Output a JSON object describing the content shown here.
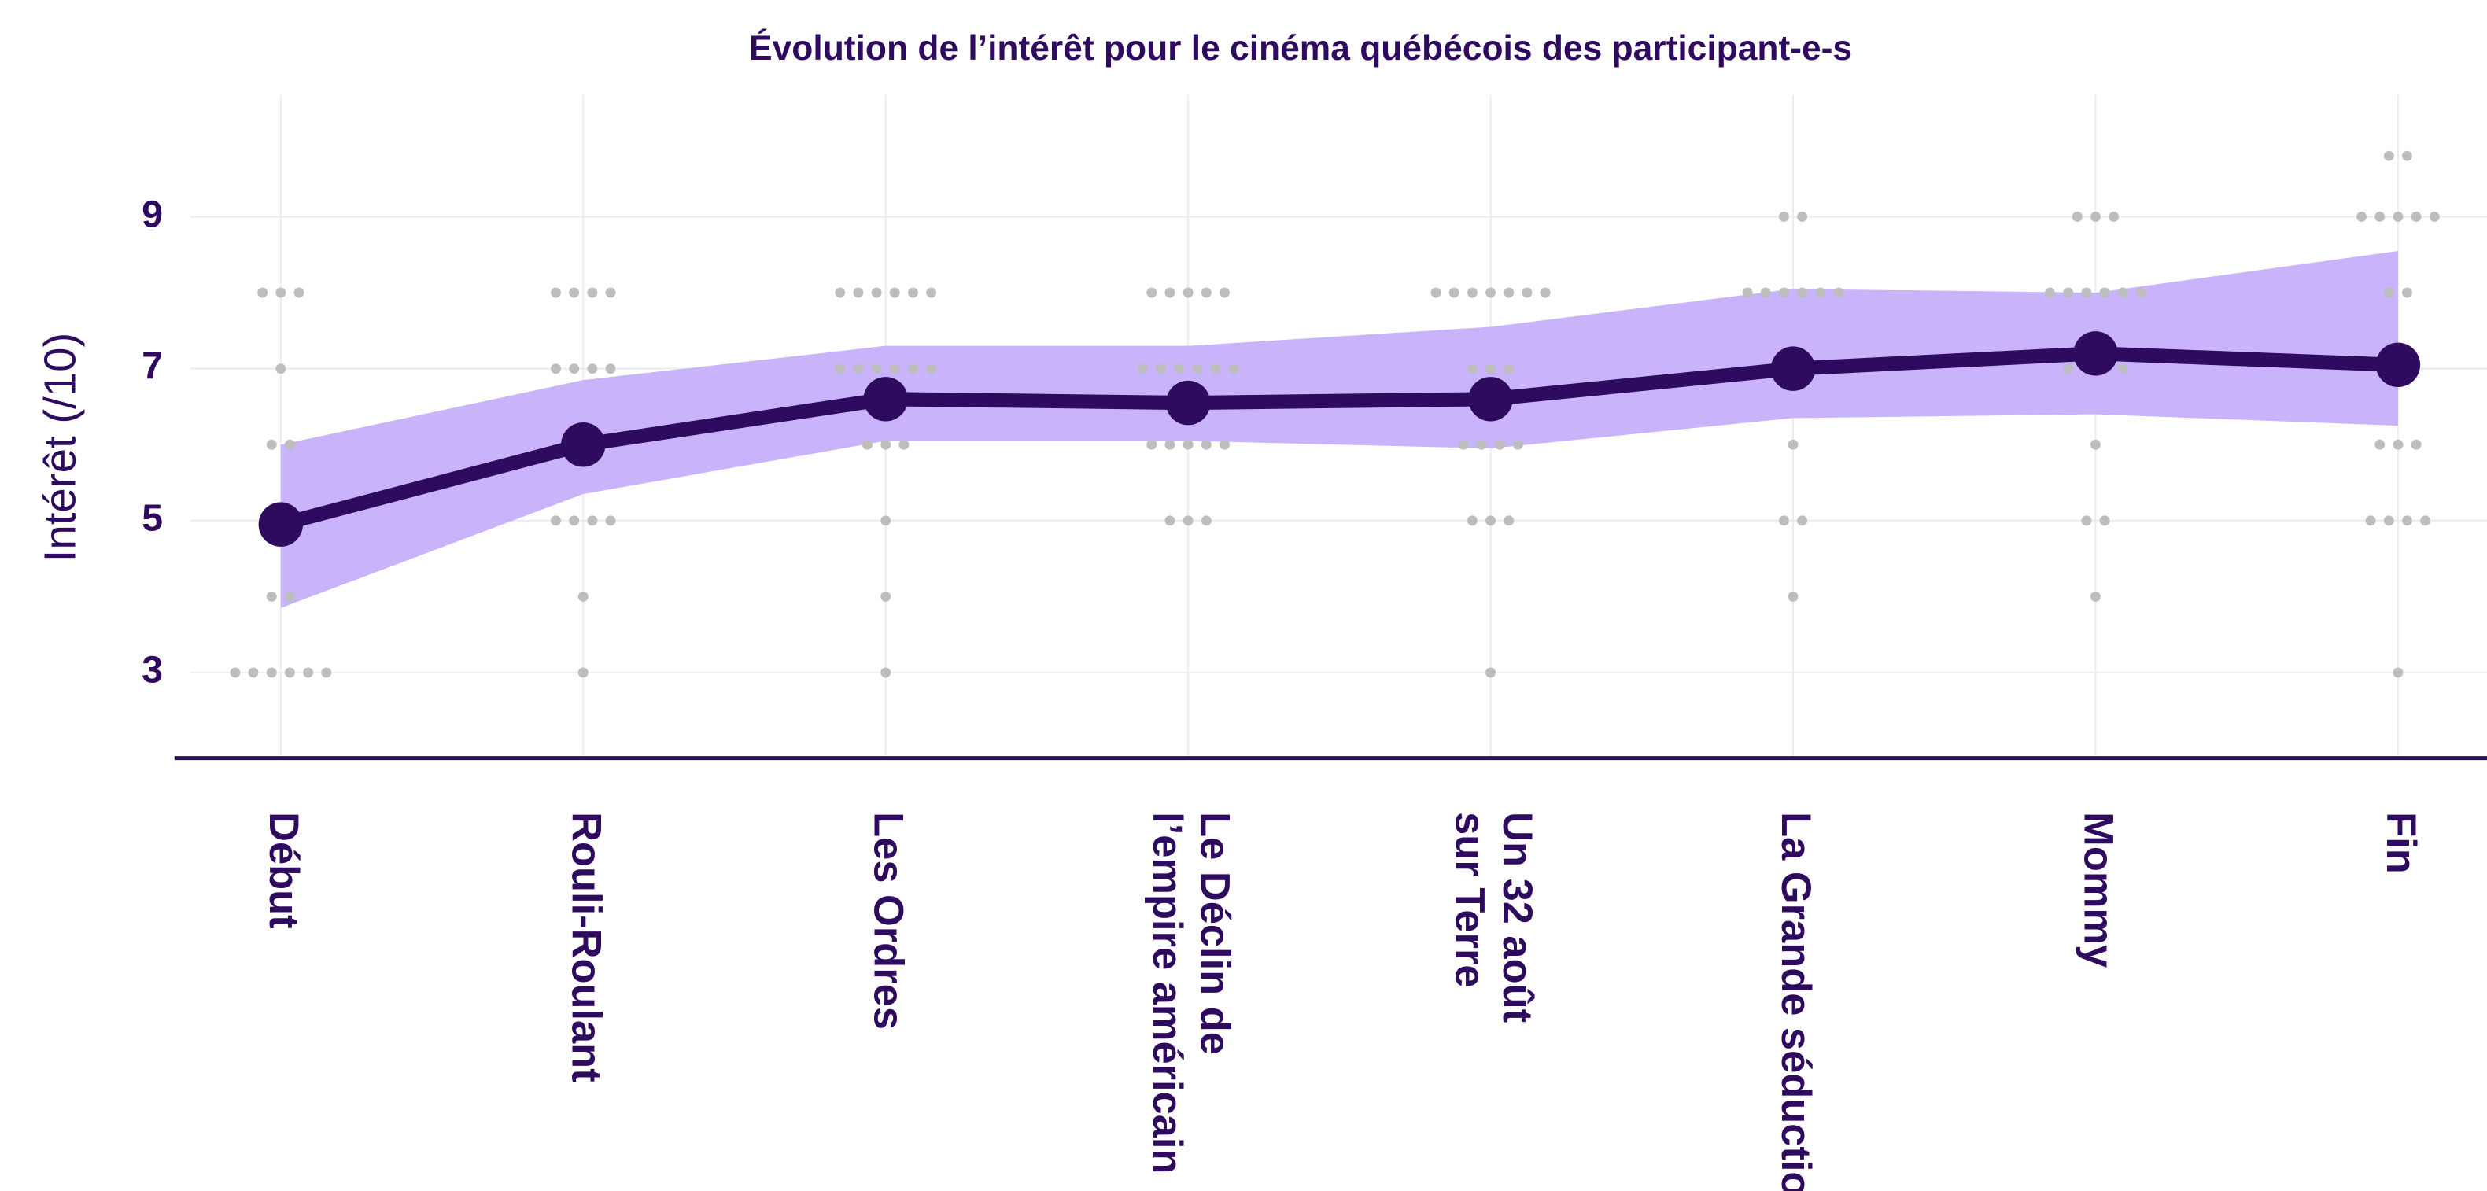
{
  "chart_data": {
    "type": "line",
    "title": "Évolution de l’intérêt pour le cinéma québécois des participant-e-s",
    "y_label": "Intérêt (/10)",
    "categories": [
      "Début",
      "Rouli-Roulant",
      "Les Ordres",
      [
        "Le Déclin de",
        "l’empire américain"
      ],
      [
        "Un 32 août",
        "sur Terre"
      ],
      "La Grande séduction",
      "Mommy",
      "Fin"
    ],
    "values": [
      4.95,
      6.0,
      6.6,
      6.55,
      6.6,
      7.0,
      7.2,
      7.05
    ],
    "band_lower": [
      3.85,
      5.35,
      6.05,
      6.05,
      5.95,
      6.35,
      6.4,
      6.25
    ],
    "band_upper": [
      6.0,
      6.85,
      7.3,
      7.3,
      7.55,
      8.05,
      8.0,
      8.55
    ],
    "responses": [
      [
        8,
        8,
        8,
        7,
        6,
        6,
        5,
        4,
        4,
        3,
        3,
        3,
        3,
        3,
        3
      ],
      [
        8,
        8,
        8,
        8,
        7,
        7,
        7,
        7,
        6,
        6,
        5,
        5,
        5,
        5,
        4,
        3
      ],
      [
        8,
        8,
        8,
        8,
        8,
        8,
        7,
        7,
        7,
        7,
        7,
        7,
        6,
        6,
        6,
        5,
        4,
        3
      ],
      [
        8,
        8,
        8,
        8,
        8,
        7,
        7,
        7,
        7,
        7,
        7,
        6,
        6,
        6,
        6,
        6,
        5,
        5,
        5
      ],
      [
        8,
        8,
        8,
        8,
        8,
        8,
        8,
        7,
        7,
        7,
        6,
        6,
        6,
        6,
        5,
        5,
        5,
        3
      ],
      [
        9,
        9,
        8,
        8,
        8,
        8,
        8,
        8,
        7,
        7,
        7,
        6,
        5,
        5,
        4
      ],
      [
        9,
        9,
        9,
        8,
        8,
        8,
        8,
        8,
        8,
        7,
        7,
        7,
        7,
        6,
        5,
        5,
        4
      ],
      [
        9.8,
        9.8,
        9,
        9,
        9,
        9,
        9,
        8,
        8,
        6,
        6,
        6,
        5,
        5,
        5,
        5,
        3
      ]
    ],
    "color": "#2e0b5e",
    "band_color": "#c9b3fb",
    "dot_color": "#bdbdbd",
    "ylim": [
      1.875,
      10.6
    ],
    "yticks": [
      3,
      5,
      7,
      9
    ],
    "grid": true
  }
}
